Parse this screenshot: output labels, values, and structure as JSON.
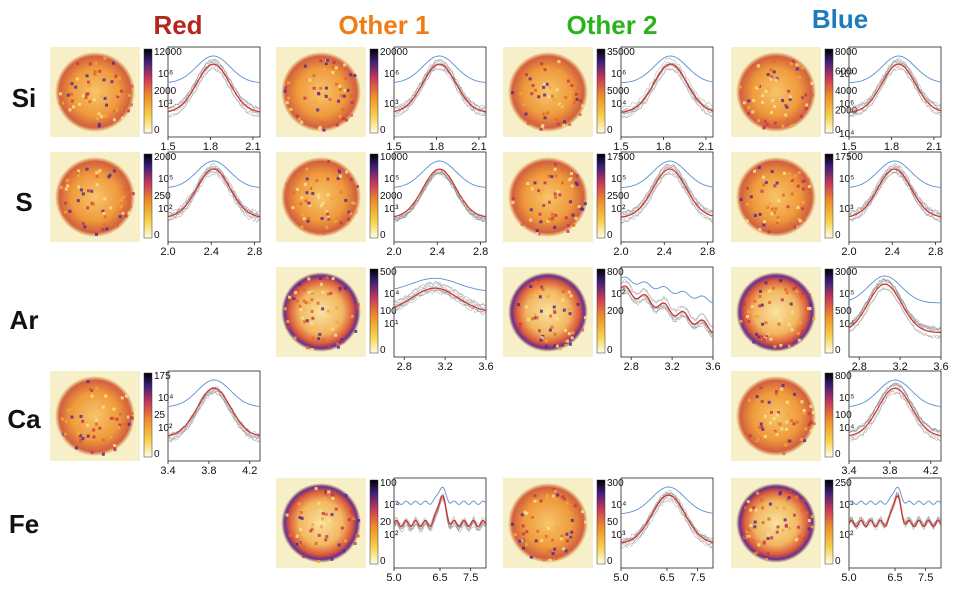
{
  "columns": [
    {
      "label": "Red",
      "color": "#b3261e"
    },
    {
      "label": "Other 1",
      "color": "#ef7d14"
    },
    {
      "label": "Other 2",
      "color": "#2bb31d"
    },
    {
      "label": "Blue",
      "color": "#1f7bbf"
    }
  ],
  "rows": [
    "Si",
    "S",
    "Ar",
    "Ca",
    "Fe"
  ],
  "chart_data": {
    "type": "line",
    "description_axis": "energy (keV) on x, intensity on log y; each panel shows a map image, a colorbar, and spectra (red = mean, gray = individual regions, blue = reference)",
    "panels": [
      {
        "id": "Si-Red",
        "row": "Si",
        "col": "Red",
        "shape": "peak",
        "peak": 1.82,
        "xlim": [
          1.5,
          2.15
        ],
        "xticks": [
          "1.5",
          "1.8",
          "2.1"
        ],
        "colorbar": [
          "12000",
          "2000",
          "0"
        ],
        "cb_exp": [
          "10⁶",
          "10³"
        ]
      },
      {
        "id": "Si-Other 1",
        "row": "Si",
        "col": "Other 1",
        "shape": "peak",
        "peak": 1.82,
        "xlim": [
          1.5,
          2.15
        ],
        "xticks": [
          "1.5",
          "1.8",
          "2.1"
        ],
        "colorbar": [
          "20000",
          "0"
        ],
        "cb_exp": [
          "10⁶",
          "10³"
        ]
      },
      {
        "id": "Si-Other 2",
        "row": "Si",
        "col": "Other 2",
        "shape": "peak",
        "peak": 1.85,
        "xlim": [
          1.5,
          2.15
        ],
        "xticks": [
          "1.5",
          "1.8",
          "2.1"
        ],
        "colorbar": [
          "35000",
          "5000",
          "0"
        ],
        "cb_exp": [
          "10⁶",
          "10⁴"
        ]
      },
      {
        "id": "Si-Blue",
        "row": "Si",
        "col": "Blue",
        "shape": "peak",
        "peak": 1.85,
        "xlim": [
          1.5,
          2.15
        ],
        "xticks": [
          "1.5",
          "1.8",
          "2.1"
        ],
        "colorbar": [
          "8000",
          "6000",
          "4000",
          "2000",
          "0"
        ],
        "cb_exp": [
          "10⁷",
          "10⁶",
          "10⁴"
        ]
      },
      {
        "id": "S-Red",
        "row": "S",
        "col": "Red",
        "shape": "peak",
        "peak": 2.42,
        "xlim": [
          2.0,
          2.85
        ],
        "xticks": [
          "2.0",
          "2.4",
          "2.8"
        ],
        "colorbar": [
          "2000",
          "250",
          "0"
        ],
        "cb_exp": [
          "10⁵",
          "10²"
        ]
      },
      {
        "id": "S-Other 1",
        "row": "S",
        "col": "Other 1",
        "shape": "peak",
        "peak": 2.42,
        "xlim": [
          2.0,
          2.85
        ],
        "xticks": [
          "2.0",
          "2.4",
          "2.8"
        ],
        "colorbar": [
          "10000",
          "2000",
          "0"
        ],
        "cb_exp": [
          "10⁵",
          "10³"
        ]
      },
      {
        "id": "S-Other 2",
        "row": "S",
        "col": "Other 2",
        "shape": "peak",
        "peak": 2.45,
        "xlim": [
          2.0,
          2.85
        ],
        "xticks": [
          "2.0",
          "2.4",
          "2.8"
        ],
        "colorbar": [
          "17500",
          "2500",
          "0"
        ],
        "cb_exp": [
          "10⁵",
          "10²"
        ]
      },
      {
        "id": "S-Blue",
        "row": "S",
        "col": "Blue",
        "shape": "peak",
        "peak": 2.42,
        "xlim": [
          2.0,
          2.85
        ],
        "xticks": [
          "2.0",
          "2.4",
          "2.8"
        ],
        "colorbar": [
          "17500",
          "0"
        ],
        "cb_exp": [
          "10⁵",
          "10³"
        ]
      },
      {
        "id": "Ar-Other 1",
        "row": "Ar",
        "col": "Other 1",
        "shape": "plateau",
        "peak": 3.1,
        "xlim": [
          2.7,
          3.6
        ],
        "xticks": [
          "2.8",
          "3.2",
          "3.6"
        ],
        "colorbar": [
          "500",
          "100",
          "0"
        ],
        "cb_exp": [
          "10⁴",
          "10¹"
        ]
      },
      {
        "id": "Ar-Other 2",
        "row": "Ar",
        "col": "Other 2",
        "shape": "decline",
        "peak": 2.8,
        "xlim": [
          2.7,
          3.6
        ],
        "xticks": [
          "2.8",
          "3.2",
          "3.6"
        ],
        "colorbar": [
          "800",
          "200",
          "0"
        ],
        "cb_exp": [
          "10²"
        ]
      },
      {
        "id": "Ar-Blue",
        "row": "Ar",
        "col": "Blue",
        "shape": "peak",
        "peak": 3.05,
        "xlim": [
          2.7,
          3.6
        ],
        "xticks": [
          "2.8",
          "3.2",
          "3.6"
        ],
        "colorbar": [
          "3000",
          "500",
          "0"
        ],
        "cb_exp": [
          "10⁵",
          "10⁴"
        ]
      },
      {
        "id": "Ca-Red",
        "row": "Ca",
        "col": "Red",
        "shape": "peak",
        "peak": 3.85,
        "xlim": [
          3.4,
          4.3
        ],
        "xticks": [
          "3.4",
          "3.8",
          "4.2"
        ],
        "colorbar": [
          "175",
          "25",
          "0"
        ],
        "cb_exp": [
          "10⁴",
          "10²"
        ]
      },
      {
        "id": "Ca-Blue",
        "row": "Ca",
        "col": "Blue",
        "shape": "peak",
        "peak": 3.85,
        "xlim": [
          3.4,
          4.3
        ],
        "xticks": [
          "3.4",
          "3.8",
          "4.2"
        ],
        "colorbar": [
          "800",
          "100",
          "0"
        ],
        "cb_exp": [
          "10⁵",
          "10⁴"
        ]
      },
      {
        "id": "Fe-Other 1",
        "row": "Fe",
        "col": "Other 1",
        "shape": "sharp",
        "peak": 6.55,
        "xlim": [
          5.0,
          8.0
        ],
        "xticks": [
          "5.0",
          "6.5",
          "7.5"
        ],
        "colorbar": [
          "100",
          "20",
          "0"
        ],
        "cb_exp": [
          "10⁴",
          "10²"
        ]
      },
      {
        "id": "Fe-Other 2",
        "row": "Fe",
        "col": "Other 2",
        "shape": "peak",
        "peak": 6.55,
        "xlim": [
          5.0,
          8.0
        ],
        "xticks": [
          "5.0",
          "6.5",
          "7.5"
        ],
        "colorbar": [
          "300",
          "50",
          "0"
        ],
        "cb_exp": [
          "10⁴",
          "10³"
        ]
      },
      {
        "id": "Fe-Blue",
        "row": "Fe",
        "col": "Blue",
        "shape": "sharp",
        "peak": 6.55,
        "xlim": [
          5.0,
          8.0
        ],
        "xticks": [
          "5.0",
          "6.5",
          "7.5"
        ],
        "colorbar": [
          "250",
          "0"
        ],
        "cb_exp": [
          "10³",
          "10²"
        ]
      }
    ]
  }
}
